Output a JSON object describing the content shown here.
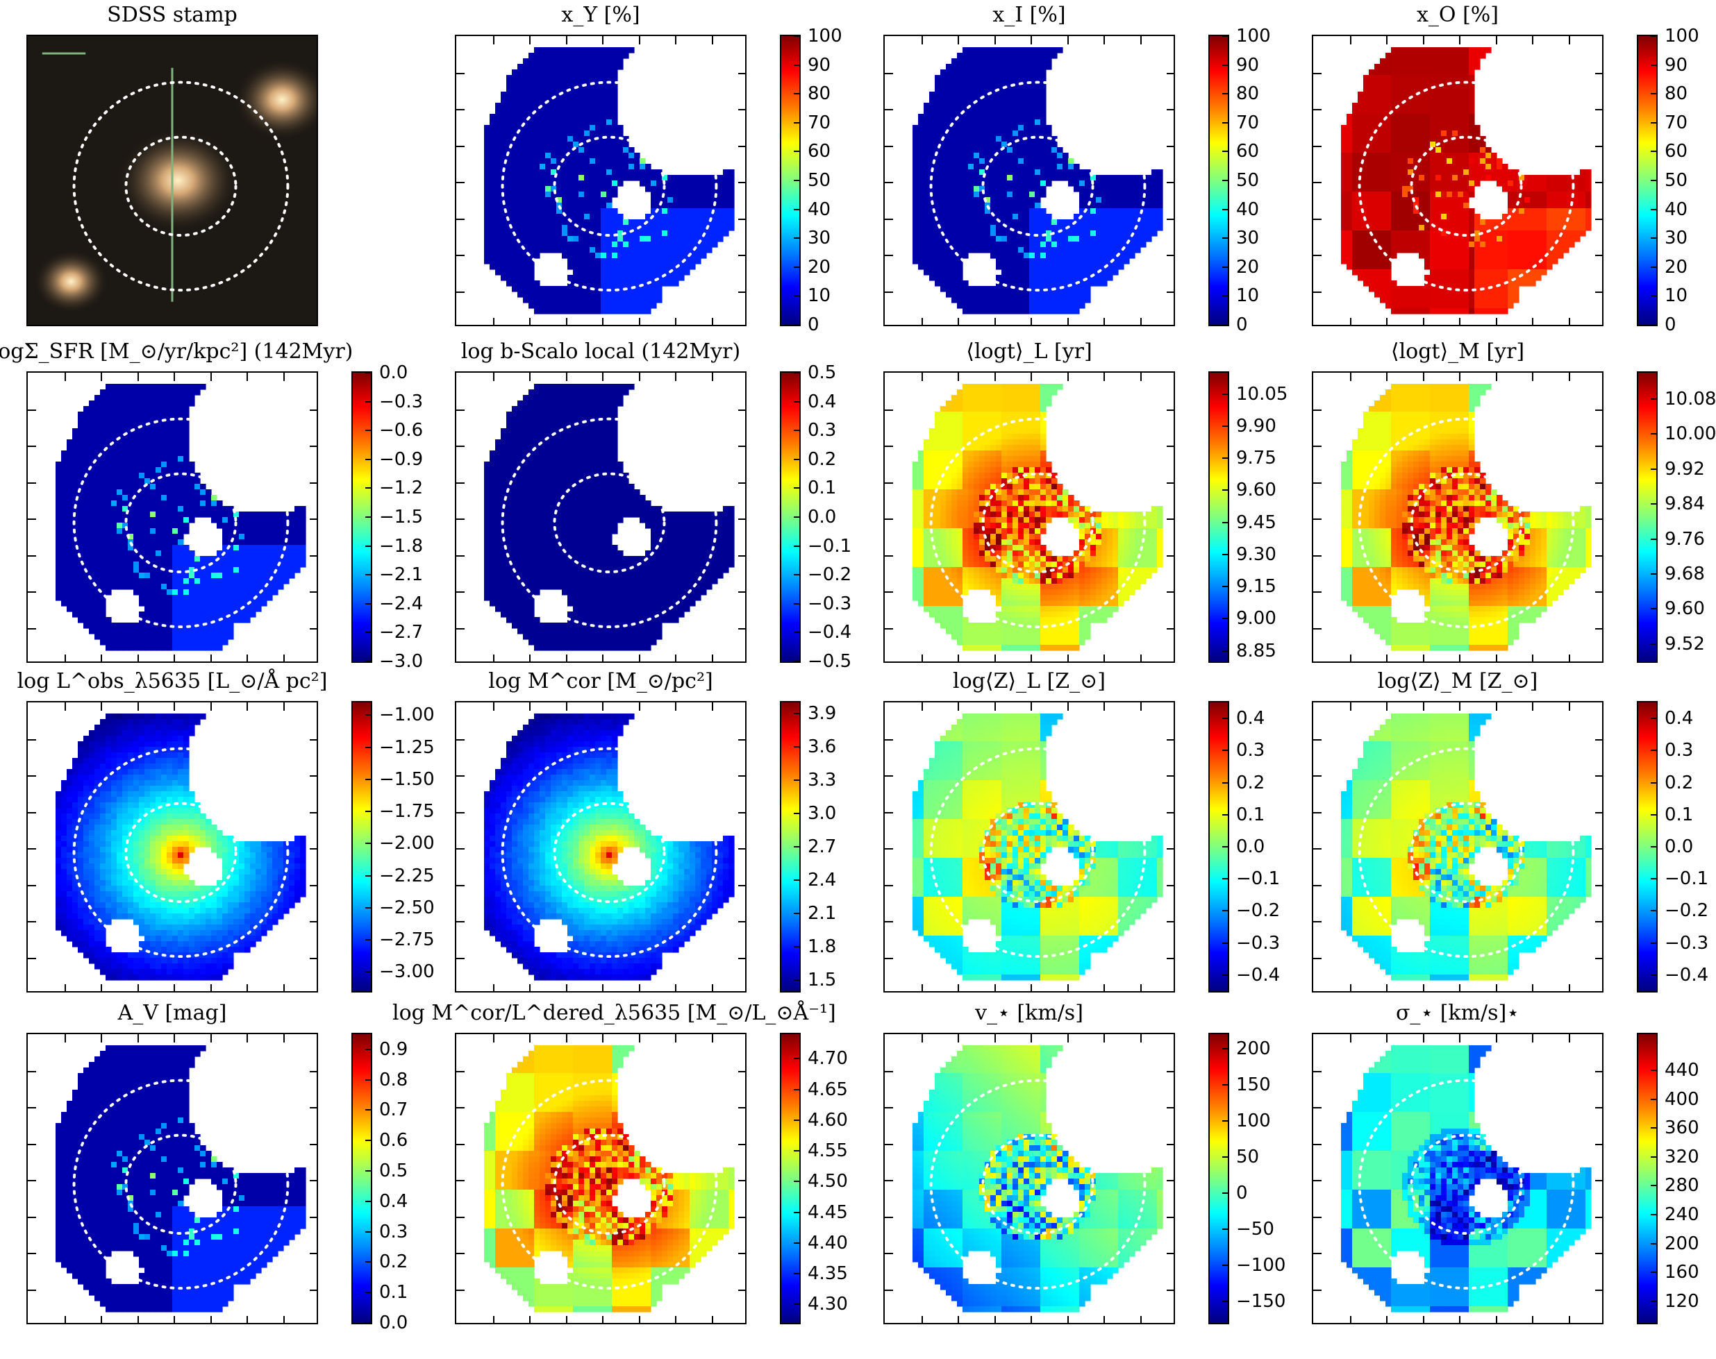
{
  "colors": {
    "jet": [
      "#00007f",
      "#0000ff",
      "#007fff",
      "#00ffff",
      "#7fff7f",
      "#ffff00",
      "#ff7f00",
      "#ff0000",
      "#7f0000"
    ],
    "ellipse": "#ffffff",
    "stamp_bg": "#1c1813"
  },
  "chart_data": [
    {
      "type": "heatmap",
      "title": "SDSS stamp",
      "kind": "stamp",
      "colorbar": null
    },
    {
      "type": "heatmap",
      "title": "x_Y [%]",
      "kind": "low",
      "colorbar": {
        "ticks": [
          "100",
          "90",
          "80",
          "70",
          "60",
          "50",
          "40",
          "30",
          "20",
          "10",
          "0"
        ],
        "min": 0,
        "max": 100
      }
    },
    {
      "type": "heatmap",
      "title": "x_I [%]",
      "kind": "low",
      "colorbar": {
        "ticks": [
          "100",
          "90",
          "80",
          "70",
          "60",
          "50",
          "40",
          "30",
          "20",
          "10",
          "0"
        ],
        "min": 0,
        "max": 100
      }
    },
    {
      "type": "heatmap",
      "title": "x_O [%]",
      "kind": "high",
      "colorbar": {
        "ticks": [
          "100",
          "90",
          "80",
          "70",
          "60",
          "50",
          "40",
          "30",
          "20",
          "10",
          "0"
        ],
        "min": 0,
        "max": 100
      }
    },
    {
      "type": "heatmap",
      "title": "logΣ_SFR [M_⊙/yr/kpc²] (142Myr)",
      "kind": "low",
      "colorbar": {
        "ticks": [
          "0.0",
          "−0.3",
          "−0.6",
          "−0.9",
          "−1.2",
          "−1.5",
          "−1.8",
          "−2.1",
          "−2.4",
          "−2.7",
          "−3.0"
        ],
        "min": -3.0,
        "max": 0.0
      }
    },
    {
      "type": "heatmap",
      "title": "log b-Scalo local (142Myr)",
      "kind": "flat",
      "colorbar": {
        "ticks": [
          "0.5",
          "0.4",
          "0.3",
          "0.2",
          "0.1",
          "0.0",
          "−0.1",
          "−0.2",
          "−0.3",
          "−0.4",
          "−0.5"
        ],
        "min": -0.5,
        "max": 0.5
      }
    },
    {
      "type": "heatmap",
      "title": "⟨logt⟩_L [yr]",
      "kind": "age",
      "colorbar": {
        "ticks": [
          "10.05",
          "9.90",
          "9.75",
          "9.60",
          "9.45",
          "9.30",
          "9.15",
          "9.00",
          "8.85"
        ],
        "min": 8.8,
        "max": 10.15
      }
    },
    {
      "type": "heatmap",
      "title": "⟨logt⟩_M [yr]",
      "kind": "age",
      "colorbar": {
        "ticks": [
          "10.08",
          "10.00",
          "9.92",
          "9.84",
          "9.76",
          "9.68",
          "9.60",
          "9.52"
        ],
        "min": 9.48,
        "max": 10.14
      }
    },
    {
      "type": "heatmap",
      "title": "log L^obs_λ5635 [L_⊙/Å pc²]",
      "kind": "radial",
      "colorbar": {
        "ticks": [
          "−1.00",
          "−1.25",
          "−1.50",
          "−1.75",
          "−2.00",
          "−2.25",
          "−2.50",
          "−2.75",
          "−3.00"
        ],
        "min": -3.15,
        "max": -0.9
      }
    },
    {
      "type": "heatmap",
      "title": "log M^cor [M_⊙/pc²]",
      "kind": "radial",
      "colorbar": {
        "ticks": [
          "3.9",
          "3.6",
          "3.3",
          "3.0",
          "2.7",
          "2.4",
          "2.1",
          "1.8",
          "1.5"
        ],
        "min": 1.4,
        "max": 4.0
      }
    },
    {
      "type": "heatmap",
      "title": "log⟨Z⟩_L [Z_⊙]",
      "kind": "mid",
      "colorbar": {
        "ticks": [
          "0.4",
          "0.3",
          "0.2",
          "0.1",
          "0.0",
          "−0.1",
          "−0.2",
          "−0.3",
          "−0.4"
        ],
        "min": -0.45,
        "max": 0.45
      }
    },
    {
      "type": "heatmap",
      "title": "log⟨Z⟩_M [Z_⊙]",
      "kind": "mid",
      "colorbar": {
        "ticks": [
          "0.4",
          "0.3",
          "0.2",
          "0.1",
          "0.0",
          "−0.1",
          "−0.2",
          "−0.3",
          "−0.4"
        ],
        "min": -0.45,
        "max": 0.45
      }
    },
    {
      "type": "heatmap",
      "title": "A_V [mag]",
      "kind": "low",
      "colorbar": {
        "ticks": [
          "0.9",
          "0.8",
          "0.7",
          "0.6",
          "0.5",
          "0.4",
          "0.3",
          "0.2",
          "0.1",
          "0.0"
        ],
        "min": 0.0,
        "max": 0.95
      }
    },
    {
      "type": "heatmap",
      "title": "log M^cor/L^dered_λ5635 [M_⊙/L_⊙Å⁻¹]",
      "kind": "age",
      "colorbar": {
        "ticks": [
          "4.70",
          "4.65",
          "4.60",
          "4.55",
          "4.50",
          "4.45",
          "4.40",
          "4.35",
          "4.30"
        ],
        "min": 4.27,
        "max": 4.74
      }
    },
    {
      "type": "heatmap",
      "title": "v_⋆ [km/s]",
      "kind": "vel",
      "colorbar": {
        "ticks": [
          "200",
          "150",
          "100",
          "50",
          "0",
          "−50",
          "−100",
          "−150"
        ],
        "min": -180,
        "max": 220
      }
    },
    {
      "type": "heatmap",
      "title": "σ_⋆ [km/s]⋆",
      "kind": "sigma",
      "colorbar": {
        "ticks": [
          "440",
          "400",
          "360",
          "320",
          "280",
          "240",
          "200",
          "160",
          "120"
        ],
        "min": 90,
        "max": 490
      }
    }
  ]
}
